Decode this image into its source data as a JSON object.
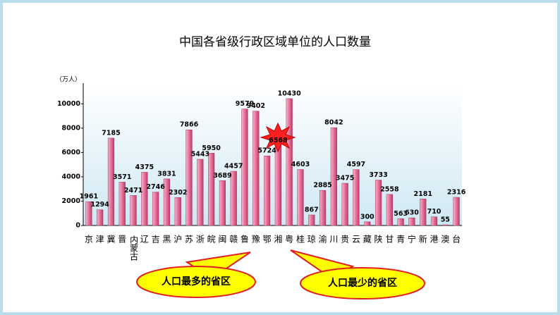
{
  "chart_data": {
    "type": "bar",
    "title": "中国各省级行政区域单位的人口数量",
    "y_label": "（万人）",
    "categories": [
      "京",
      "津",
      "冀",
      "晋",
      "内蒙古",
      "辽",
      "吉",
      "黑",
      "沪",
      "苏",
      "浙",
      "皖",
      "闽",
      "赣",
      "鲁",
      "豫",
      "鄂",
      "湘",
      "粤",
      "桂",
      "琼",
      "渝",
      "川",
      "贵",
      "云",
      "藏",
      "陕",
      "甘",
      "青",
      "宁",
      "新",
      "港",
      "澳",
      "台"
    ],
    "values": [
      1961,
      1294,
      7185,
      3571,
      2471,
      4375,
      2746,
      3831,
      2302,
      7866,
      5443,
      5950,
      3689,
      4457,
      9579,
      9402,
      5724,
      6568,
      10430,
      4603,
      867,
      2885,
      8042,
      3475,
      4597,
      300,
      3733,
      2558,
      563,
      630,
      2181,
      710,
      55,
      2316
    ],
    "color": "#e8719a",
    "ylim": [
      0,
      11700
    ],
    "yticks": [
      0,
      2000,
      4000,
      6000,
      8000,
      10000
    ],
    "annotations": [
      "人口最多的省区",
      "人口最少的省区"
    ]
  }
}
